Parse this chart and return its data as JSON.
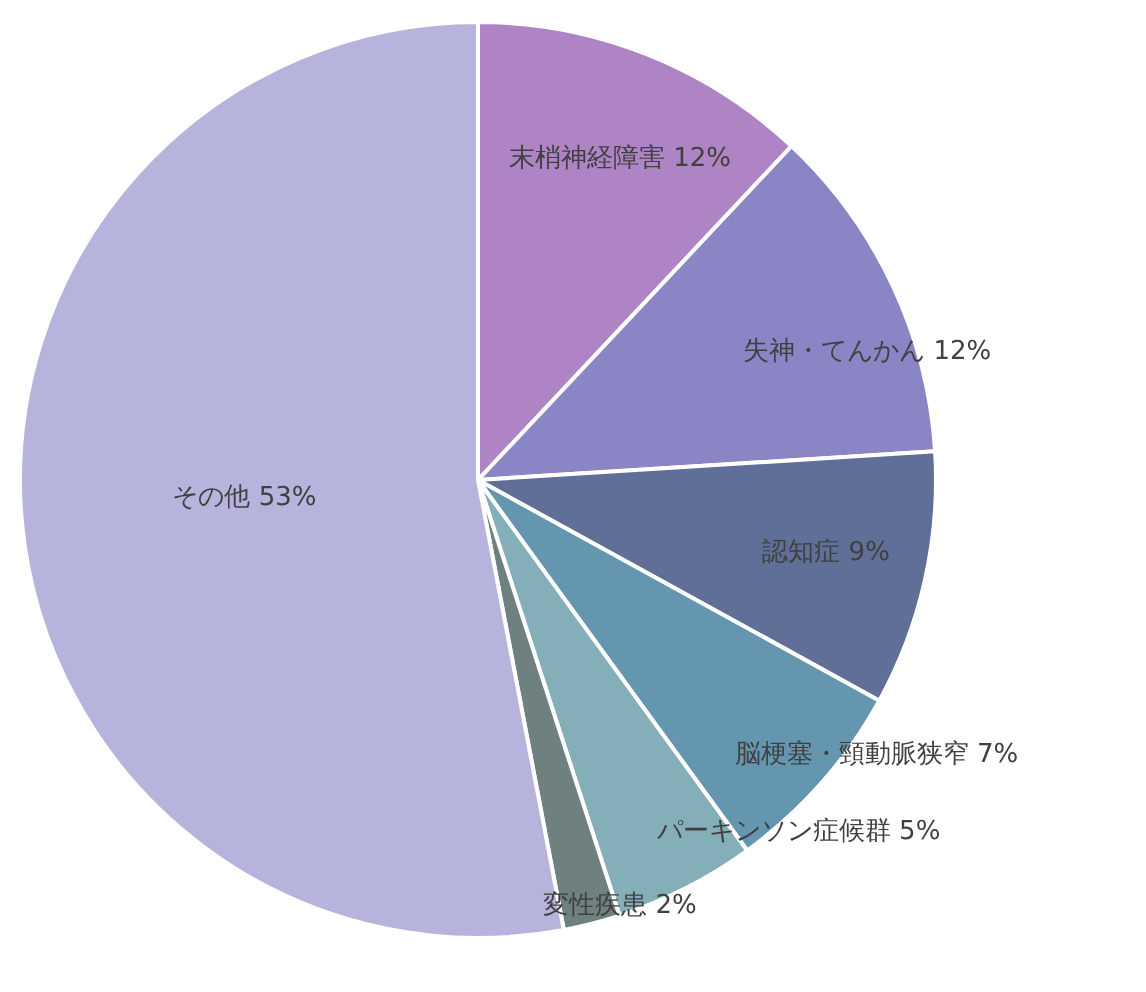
{
  "chart_data": {
    "type": "pie",
    "categories": [
      "末梢神経障害",
      "失神・てんかん",
      "認知症",
      "脳梗塞・頸動脈狭窄",
      "パーキンソン症候群",
      "変性疾患",
      "その他"
    ],
    "values": [
      12,
      12,
      9,
      7,
      5,
      2,
      53
    ],
    "value_labels": [
      "12%",
      "12%",
      "9%",
      "7%",
      "5%",
      "2%",
      "53%"
    ],
    "colors": [
      "#ae84c4",
      "#8a86c6",
      "#5f6f98",
      "#6596b0",
      "#85afb8",
      "#6f8080",
      "#b6b4dc"
    ],
    "legend": false
  }
}
